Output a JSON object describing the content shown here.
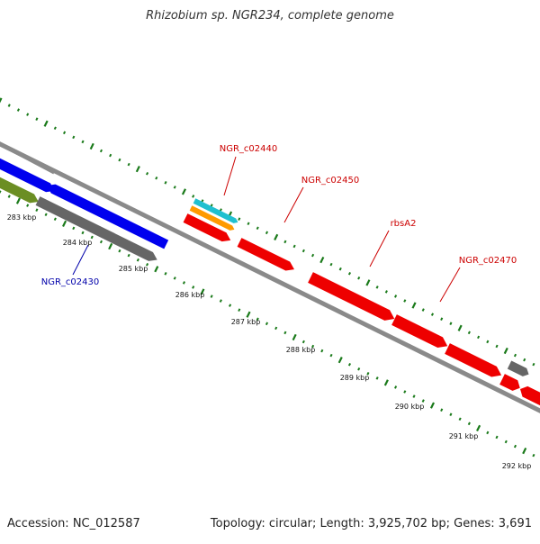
{
  "title": "Rhizobium sp. NGR234, complete genome",
  "footer": {
    "accession": "Accession: NC_012587",
    "summary": "Topology: circular; Length: 3,925,702 bp; Genes: 3,691"
  },
  "colors": {
    "backbone": "#8a8a8a",
    "tick": "#1a7a1a",
    "gene_blue": "#0000ee",
    "gene_red": "#ee0000",
    "gene_grey": "#666666",
    "gene_olive": "#6b8e23",
    "gene_cyan": "#20c0d0",
    "gene_orange": "#ff9a00",
    "label_red": "#cc0000",
    "label_blue": "#0000aa",
    "kbp_text": "#111111"
  },
  "kbp_labels": [
    "283 kbp",
    "284 kbp",
    "285 kbp",
    "286 kbp",
    "287 kbp",
    "288 kbp",
    "289 kbp",
    "290 kbp",
    "291 kbp",
    "292 kbp"
  ],
  "gene_labels": [
    "NGR_c02440",
    "NGR_c02450",
    "rbsA2",
    "NGR_c02470",
    "NGR_c02430"
  ]
}
